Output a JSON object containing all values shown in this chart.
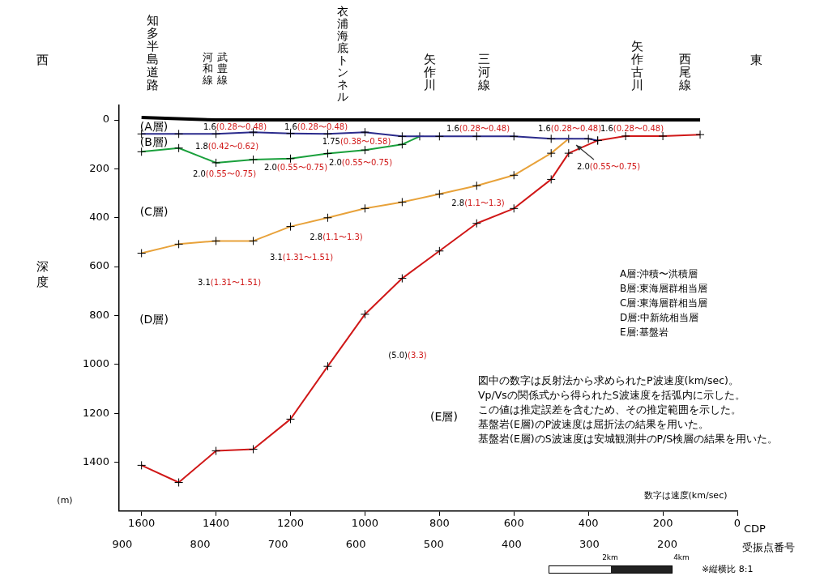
{
  "chart_data": {
    "type": "line",
    "xlabel": "CDP",
    "x2label": "受振点番号",
    "ylabel": "深度",
    "xlim": [
      1660,
      0
    ],
    "xticks": [
      1600,
      1400,
      1200,
      1000,
      800,
      600,
      400,
      200,
      0
    ],
    "x2lim": [
      904,
      110
    ],
    "x2ticks": [
      900,
      800,
      700,
      600,
      500,
      400,
      300,
      200
    ],
    "ylim": [
      1600,
      -60
    ],
    "yticks": [
      0,
      200,
      400,
      600,
      800,
      1000,
      1200,
      1400
    ],
    "grid": false,
    "legend": false,
    "marker": "cross",
    "series": [
      {
        "color": "#000000",
        "marker": "none",
        "x": [
          1600,
          1400,
          100
        ],
        "values": [
          -10,
          0,
          0
        ]
      },
      {
        "color": "#2b2b8c",
        "x": [
          1600,
          1500,
          1400,
          1300,
          1200,
          1100,
          1000,
          900,
          800,
          700,
          600,
          500,
          400,
          375
        ],
        "values": [
          57,
          57,
          57,
          50,
          55,
          57,
          50,
          67,
          67,
          67,
          67,
          77,
          77,
          84
        ]
      },
      {
        "color": "#1aa03c",
        "x": [
          1600,
          1500,
          1400,
          1300,
          1200,
          1100,
          1000,
          900,
          853
        ],
        "values": [
          130,
          115,
          175,
          162,
          158,
          137,
          123,
          100,
          67
        ]
      },
      {
        "color": "#e8a23a",
        "x": [
          1600,
          1500,
          1400,
          1300,
          1200,
          1100,
          1000,
          900,
          800,
          700,
          600,
          500,
          453
        ],
        "values": [
          545,
          508,
          495,
          495,
          436,
          400,
          362,
          336,
          303,
          269,
          226,
          136,
          77
        ]
      },
      {
        "color": "#d01818",
        "x": [
          1600,
          1500,
          1400,
          1300,
          1200,
          1100,
          1000,
          900,
          800,
          700,
          600,
          500,
          453,
          375,
          300,
          200,
          100
        ],
        "values": [
          1413,
          1483,
          1354,
          1347,
          1224,
          1008,
          795,
          648,
          536,
          423,
          362,
          243,
          136,
          84,
          66,
          66,
          60
        ]
      }
    ],
    "annotations": [
      "知多半島道路",
      "河和線",
      "武豊線",
      "衣浦海底トンネル",
      "矢作川",
      "三河線",
      "矢作古川",
      "西尾線",
      "(A層)",
      "(B層)",
      "(C層)",
      "(D層)",
      "(E層)",
      "1.6(0.28〜0.48)",
      "1.6(0.28〜0.48)",
      "1.6(0.28〜0.48)",
      "1.6(0.28〜0.48)",
      "1.6(0.28〜0.48)",
      "1.8(0.42〜0.62)",
      "1.75(0.38〜0.58)",
      "2.0(0.55〜0.75)",
      "2.0(0.55〜0.75)",
      "2.0(0.55〜0.75)",
      "2.0(0.55〜0.75)",
      "2.8(1.1〜1.3)",
      "2.8(1.1〜1.3)",
      "3.1(1.31〜1.51)",
      "3.1(1.31〜1.51)",
      "(5.0)(3.3)",
      "西",
      "東",
      "(m)",
      "A層:沖積〜洪積層",
      "B層:東海層群相当層",
      "C層:東海層群相当層",
      "D層:中新統相当層",
      "E層:基盤岩",
      "図中の数字は反射法から求められたP波速度(km/sec)。",
      "Vp/Vsの関係式から得られたS波速度を括弧内に示した。",
      "この値は推定誤差を含むため、その推定範囲を示した。",
      "基盤岩(E層)のP波速度は屈折法の結果を用いた。",
      "基盤岩(E層)のS波速度は安城観測井のP/S検層の結果を用いた。",
      "数字は速度(km/sec)",
      "2km",
      "4km",
      "※縦横比 8:1"
    ]
  }
}
